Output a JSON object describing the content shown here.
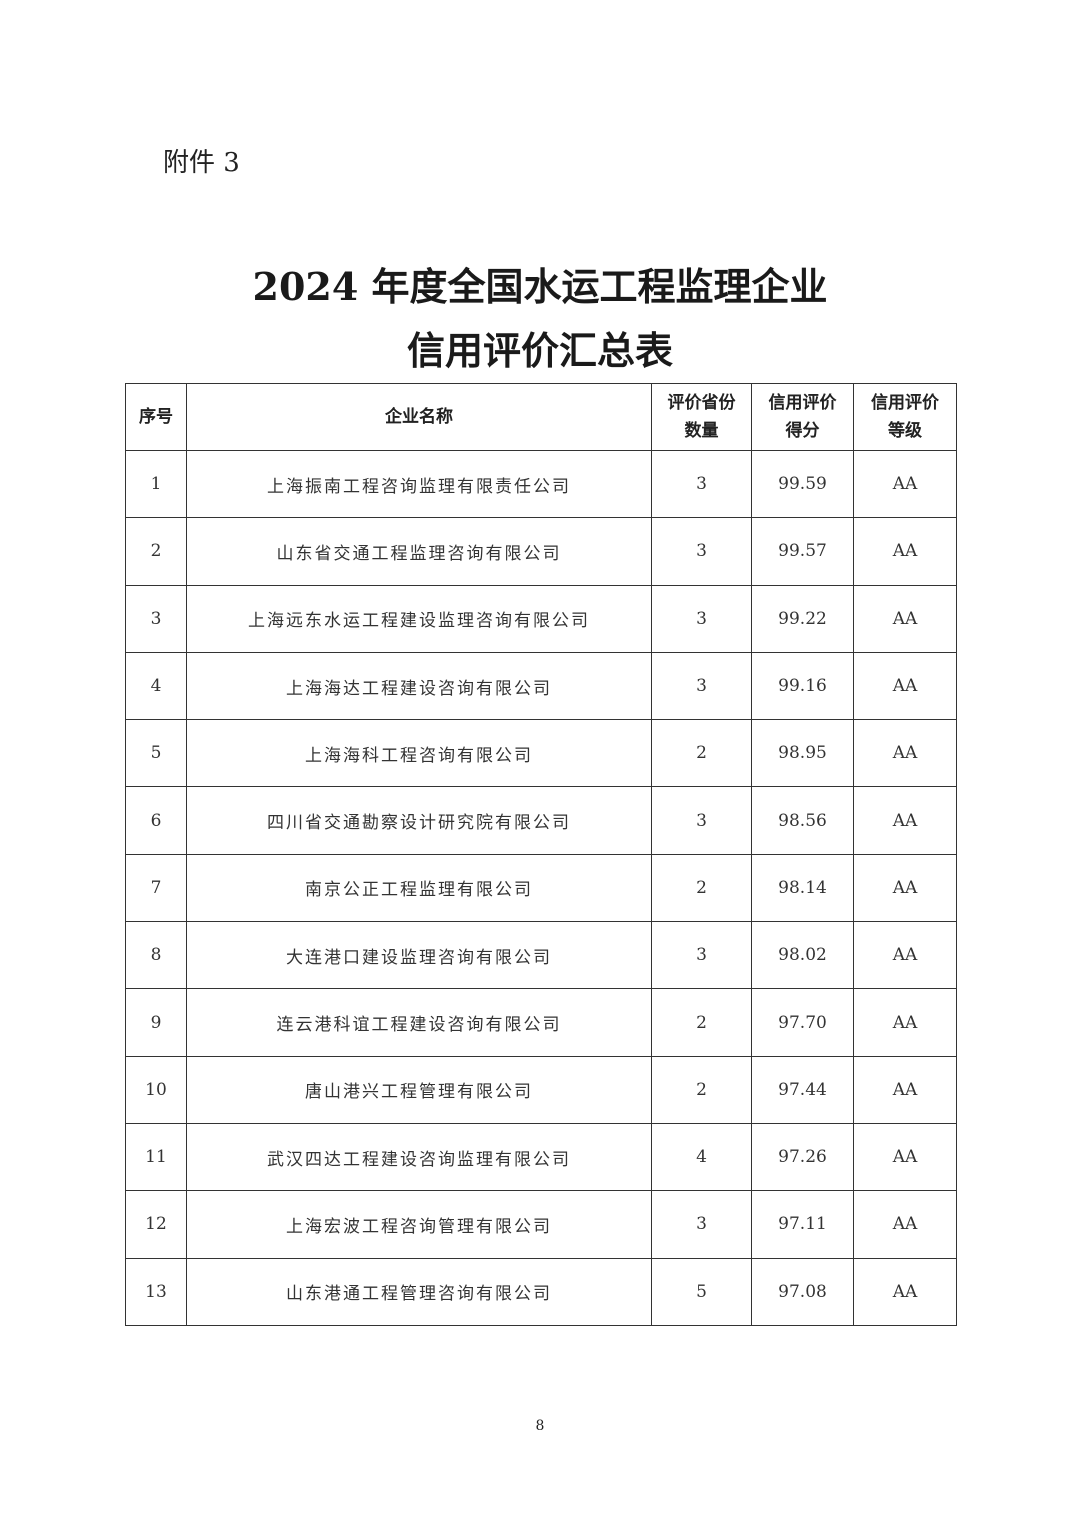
{
  "attachment_label": "附件 3",
  "title_line1": "2024 年度全国水运工程监理企业",
  "title_line2": "信用评价汇总表",
  "table": {
    "headers": [
      "序号",
      "企业名称",
      "评价省份数量",
      "信用评价得分",
      "信用评价等级"
    ],
    "header_lines": [
      [
        "序号"
      ],
      [
        "企业名称"
      ],
      [
        "评价省份",
        "数量"
      ],
      [
        "信用评价",
        "得分"
      ],
      [
        "信用评价",
        "等级"
      ]
    ],
    "rows": [
      [
        "1",
        "上海振南工程咨询监理有限责任公司",
        "3",
        "99.59",
        "AA"
      ],
      [
        "2",
        "山东省交通工程监理咨询有限公司",
        "3",
        "99.57",
        "AA"
      ],
      [
        "3",
        "上海远东水运工程建设监理咨询有限公司",
        "3",
        "99.22",
        "AA"
      ],
      [
        "4",
        "上海海达工程建设咨询有限公司",
        "3",
        "99.16",
        "AA"
      ],
      [
        "5",
        "上海海科工程咨询有限公司",
        "2",
        "98.95",
        "AA"
      ],
      [
        "6",
        "四川省交通勘察设计研究院有限公司",
        "3",
        "98.56",
        "AA"
      ],
      [
        "7",
        "南京公正工程监理有限公司",
        "2",
        "98.14",
        "AA"
      ],
      [
        "8",
        "大连港口建设监理咨询有限公司",
        "3",
        "98.02",
        "AA"
      ],
      [
        "9",
        "连云港科谊工程建设咨询有限公司",
        "2",
        "97.70",
        "AA"
      ],
      [
        "10",
        "唐山港兴工程管理有限公司",
        "2",
        "97.44",
        "AA"
      ],
      [
        "11",
        "武汉四达工程建设咨询监理有限公司",
        "4",
        "97.26",
        "AA"
      ],
      [
        "12",
        "上海宏波工程咨询管理有限公司",
        "3",
        "97.11",
        "AA"
      ],
      [
        "13",
        "山东港通工程管理咨询有限公司",
        "5",
        "97.08",
        "AA"
      ]
    ]
  },
  "page_number": "8"
}
